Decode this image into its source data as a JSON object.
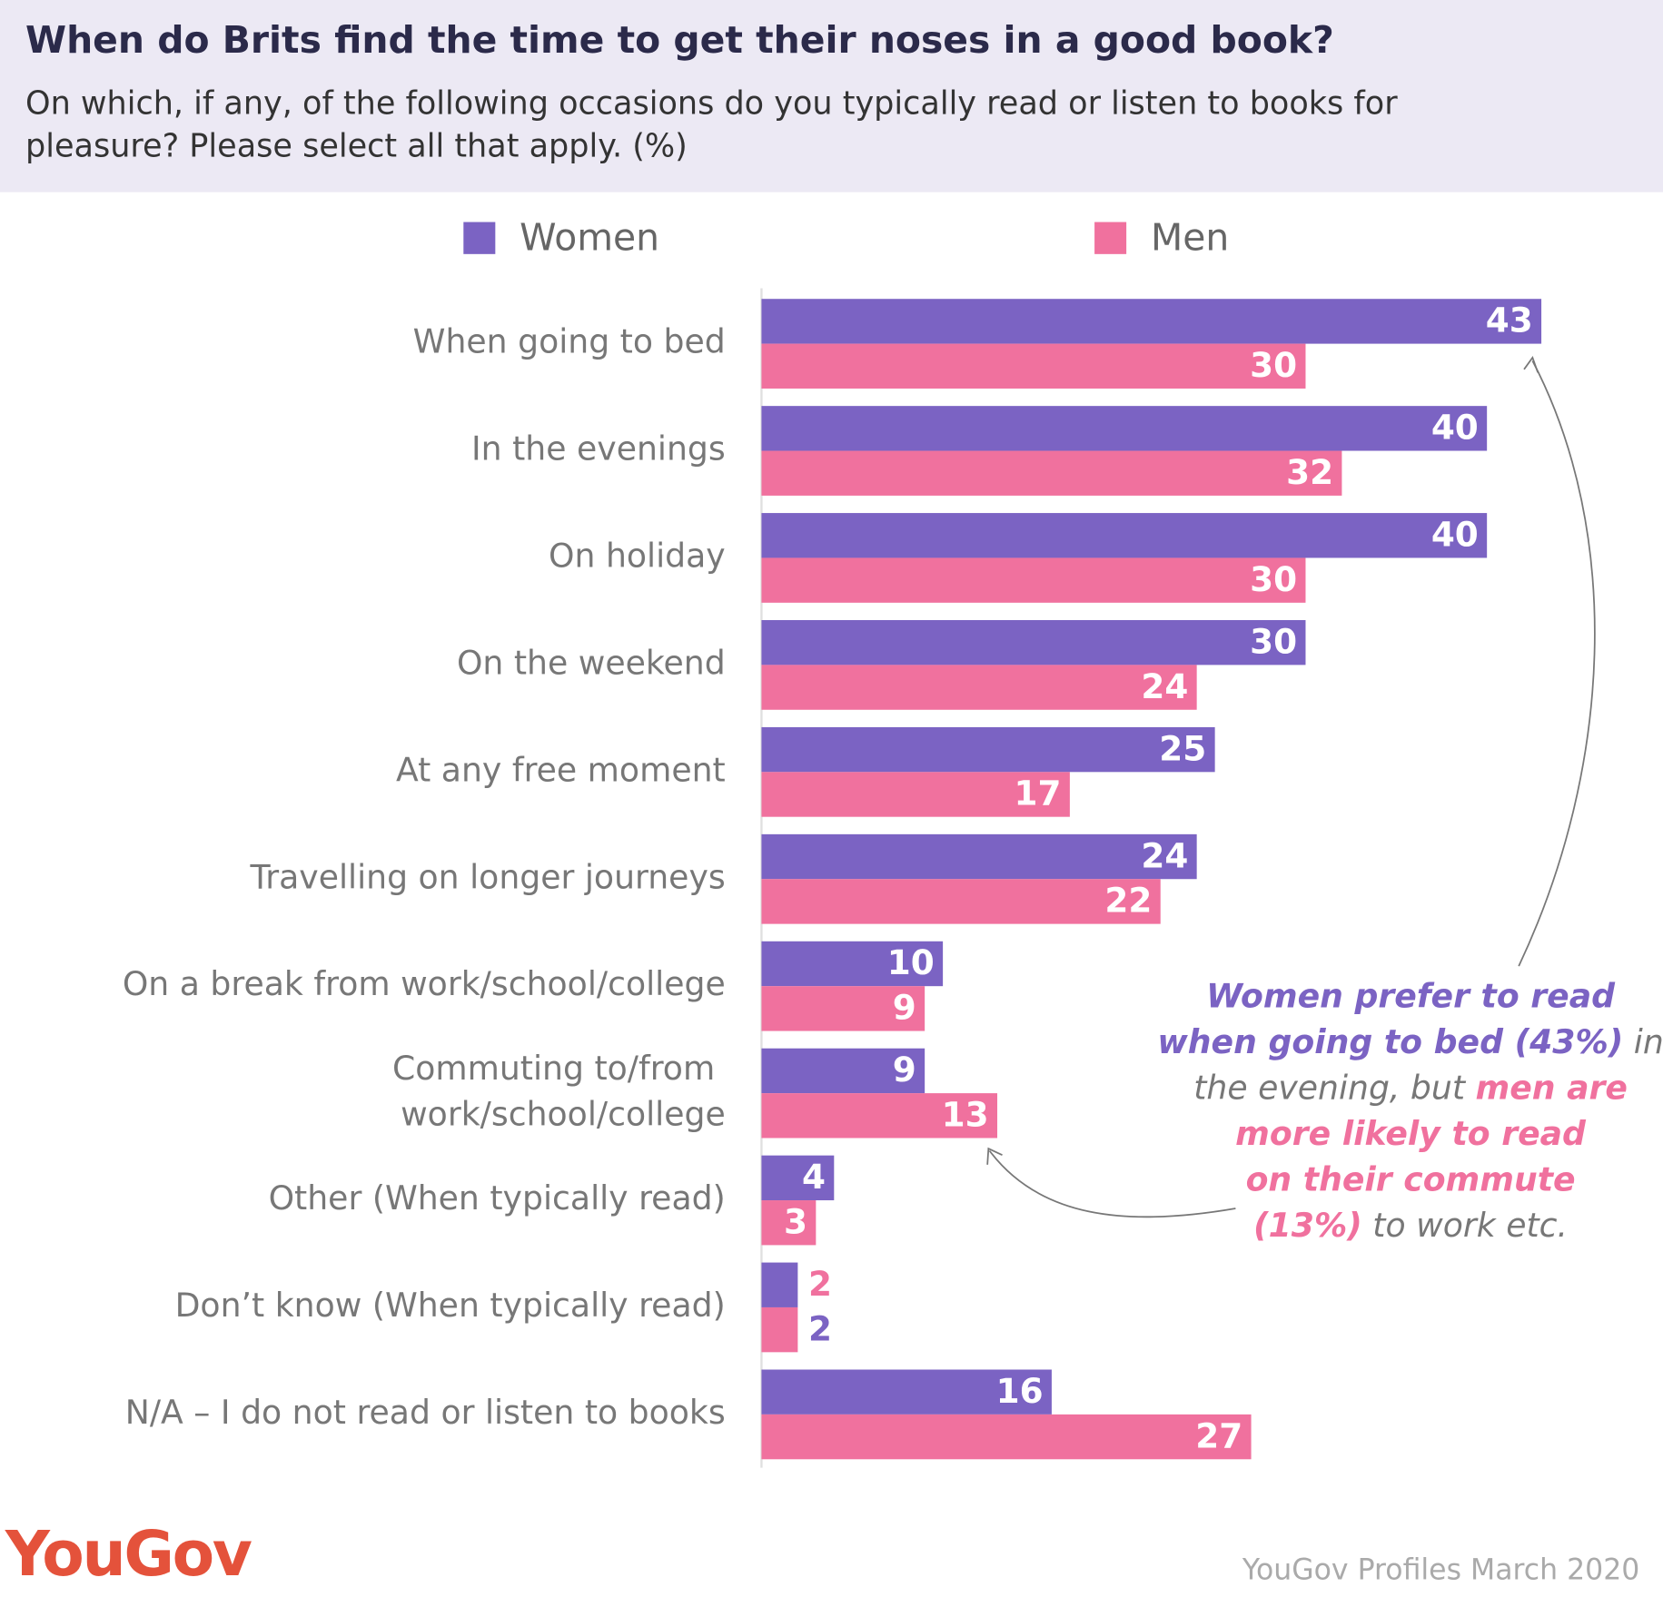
{
  "chart_data": {
    "type": "hbar",
    "title": "When do Brits find the time to get their noses in a good book?",
    "subtitle": [
      "On which, if any, of the following occasions do you typically read or listen to books for",
      "pleasure? Please select all that apply. (%)"
    ],
    "categories": [
      "When going to bed",
      "In the evenings",
      "On holiday",
      "On the weekend",
      "At any free moment",
      "Travelling on longer journeys",
      "On a break from work/school/college",
      "Commuting to/from \nwork/school/college",
      "Other (When typically read)",
      "Don’t know (When typically read)",
      "N/A – I do not read or listen to books"
    ],
    "series": [
      {
        "name": "Women",
        "color": "#7b63c3",
        "values": [
          43,
          40,
          40,
          30,
          25,
          24,
          10,
          9,
          4,
          2,
          16
        ]
      },
      {
        "name": "Men",
        "color": "#f0719e",
        "values": [
          30,
          32,
          30,
          24,
          17,
          22,
          9,
          13,
          3,
          2,
          27
        ]
      }
    ],
    "xlim": [
      0,
      45
    ],
    "annotation": [
      [
        {
          "text": "Women prefer to read",
          "color": "#7b63c3",
          "bold": true
        }
      ],
      [
        {
          "text": "when going to bed (43%)",
          "color": "#7b63c3",
          "bold": true
        },
        {
          "text": " in",
          "color": "#777777",
          "bold": false
        }
      ],
      [
        {
          "text": "the evening, but ",
          "color": "#777777",
          "bold": false
        },
        {
          "text": "men are",
          "color": "#f0719e",
          "bold": true
        }
      ],
      [
        {
          "text": "more likely to read",
          "color": "#f0719e",
          "bold": true
        }
      ],
      [
        {
          "text": "on their commute",
          "color": "#f0719e",
          "bold": true
        }
      ],
      [
        {
          "text": "(13%)",
          "color": "#f0719e",
          "bold": true
        },
        {
          "text": " to work etc.",
          "color": "#777777",
          "bold": false
        }
      ]
    ],
    "brand": "YouGov",
    "source": "YouGov Profiles March 2020"
  }
}
